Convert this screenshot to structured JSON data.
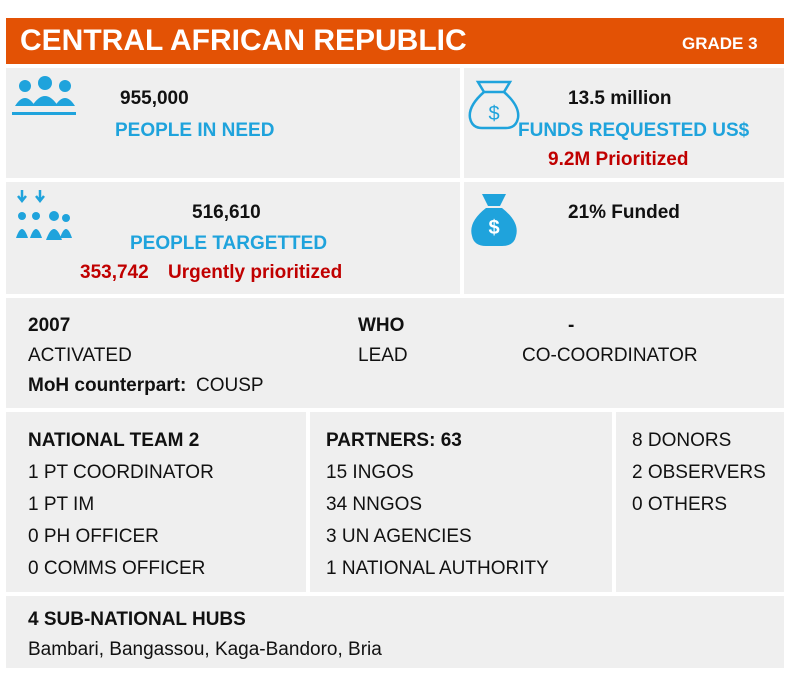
{
  "header": {
    "title": "CENTRAL AFRICAN REPUBLIC",
    "grade": "GRADE 3"
  },
  "need": {
    "value": "955,000",
    "label": "PEOPLE IN NEED"
  },
  "funds": {
    "value": "13.5 million",
    "label": "FUNDS REQUESTED US$",
    "prioritized": "9.2M Prioritized"
  },
  "targeted": {
    "value": "516,610",
    "label": "PEOPLE TARGETTED",
    "urgent_value": "353,742",
    "urgent_label": "Urgently prioritized"
  },
  "funded": "21% Funded",
  "roles": {
    "year": "2007",
    "activated": "ACTIVATED",
    "lead_org": "WHO",
    "lead": "LEAD",
    "co_org": "-",
    "co": "CO-COORDINATOR",
    "moh_label": "MoH counterpart:",
    "moh_value": "COUSP"
  },
  "team": {
    "heading": "NATIONAL TEAM 2",
    "items": [
      "1 PT COORDINATOR",
      "1 PT IM",
      "0 PH OFFICER",
      "0 COMMS OFFICER"
    ]
  },
  "partners": {
    "heading": "PARTNERS: 63",
    "items": [
      "15 INGOS",
      "34 NNGOS",
      "3 UN AGENCIES",
      "1 NATIONAL AUTHORITY"
    ]
  },
  "others": {
    "items": [
      "8 DONORS",
      "2 OBSERVERS",
      "0 OTHERS"
    ]
  },
  "hubs": {
    "heading": "4 SUB-NATIONAL HUBS",
    "list": "Bambari, Bangassou, Kaga-Bandoro, Bria"
  }
}
